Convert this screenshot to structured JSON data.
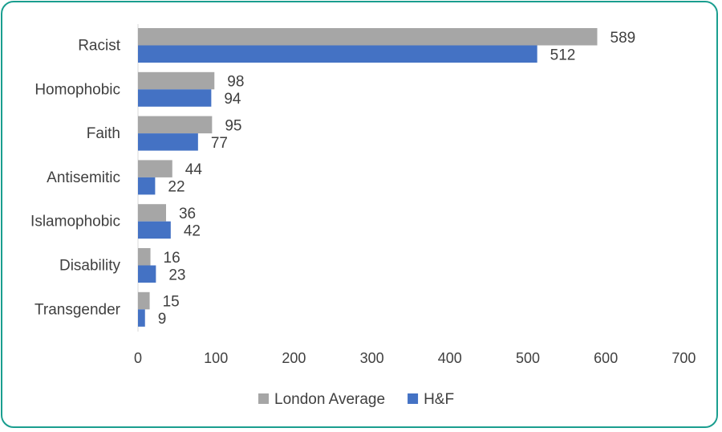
{
  "chart_data": {
    "type": "bar",
    "orientation": "horizontal",
    "categories": [
      "Racist",
      "Homophobic",
      "Faith",
      "Antisemitic",
      "Islamophobic",
      "Disability",
      "Transgender"
    ],
    "series": [
      {
        "name": "London Average",
        "values": [
          589,
          98,
          95,
          44,
          36,
          16,
          15
        ],
        "color": "#a6a6a6"
      },
      {
        "name": "H&F",
        "values": [
          512,
          94,
          77,
          22,
          42,
          23,
          9
        ],
        "color": "#4472c4"
      }
    ],
    "xlim": [
      0,
      700
    ],
    "xticks": [
      0,
      100,
      200,
      300,
      400,
      500,
      600,
      700
    ],
    "grid": false,
    "legend": "bottom",
    "frame_color": "#1a9e8f"
  }
}
